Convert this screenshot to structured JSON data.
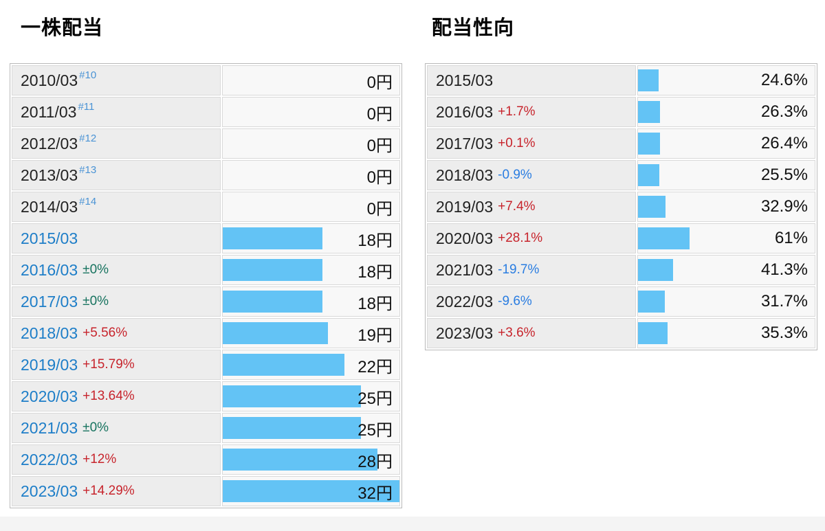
{
  "page": {
    "background": "#f4f4f4",
    "panel_background": "#ffffff"
  },
  "colors": {
    "bar": "#63c3f5",
    "year_link": "#1e7ec8",
    "note_sup": "#4a93d5",
    "change_up": "#c7242c",
    "change_down": "#2a7de1",
    "change_flat": "#17735f",
    "label_cell_bg": "#ededed",
    "value_cell_bg": "#f8f8f8",
    "table_border": "#b9b9b9"
  },
  "chart_data": [
    {
      "type": "bar",
      "orientation": "horizontal",
      "title": "一株配当",
      "unit": "円",
      "bar_scale_max": 32,
      "legend_position": "none",
      "grid": false,
      "categories": [
        "2010/03",
        "2011/03",
        "2012/03",
        "2013/03",
        "2014/03",
        "2015/03",
        "2016/03",
        "2017/03",
        "2018/03",
        "2019/03",
        "2020/03",
        "2021/03",
        "2022/03",
        "2023/03"
      ],
      "values": [
        0,
        0,
        0,
        0,
        0,
        18,
        18,
        18,
        19,
        22,
        25,
        25,
        28,
        32
      ],
      "changes": [
        "",
        "",
        "",
        "",
        "",
        "",
        "±0%",
        "±0%",
        "+5.56%",
        "+15.79%",
        "+13.64%",
        "±0%",
        "+12%",
        "+14.29%"
      ],
      "notes": [
        "#10",
        "#11",
        "#12",
        "#13",
        "#14",
        "",
        "",
        "",
        "",
        "",
        "",
        "",
        "",
        ""
      ],
      "year_link_flags": [
        false,
        false,
        false,
        false,
        false,
        true,
        true,
        true,
        true,
        true,
        true,
        true,
        true,
        true
      ]
    },
    {
      "type": "bar",
      "orientation": "horizontal",
      "title": "配当性向",
      "unit": "%",
      "bar_scale_max": 210,
      "legend_position": "none",
      "grid": false,
      "categories": [
        "2015/03",
        "2016/03",
        "2017/03",
        "2018/03",
        "2019/03",
        "2020/03",
        "2021/03",
        "2022/03",
        "2023/03"
      ],
      "values": [
        24.6,
        26.3,
        26.4,
        25.5,
        32.9,
        61,
        41.3,
        31.7,
        35.3
      ],
      "changes": [
        "",
        "+1.7%",
        "+0.1%",
        "-0.9%",
        "+7.4%",
        "+28.1%",
        "-19.7%",
        "-9.6%",
        "+3.6%"
      ],
      "notes": [
        "",
        "",
        "",
        "",
        "",
        "",
        "",
        "",
        ""
      ],
      "year_link_flags": [
        false,
        false,
        false,
        false,
        false,
        false,
        false,
        false,
        false
      ]
    }
  ]
}
